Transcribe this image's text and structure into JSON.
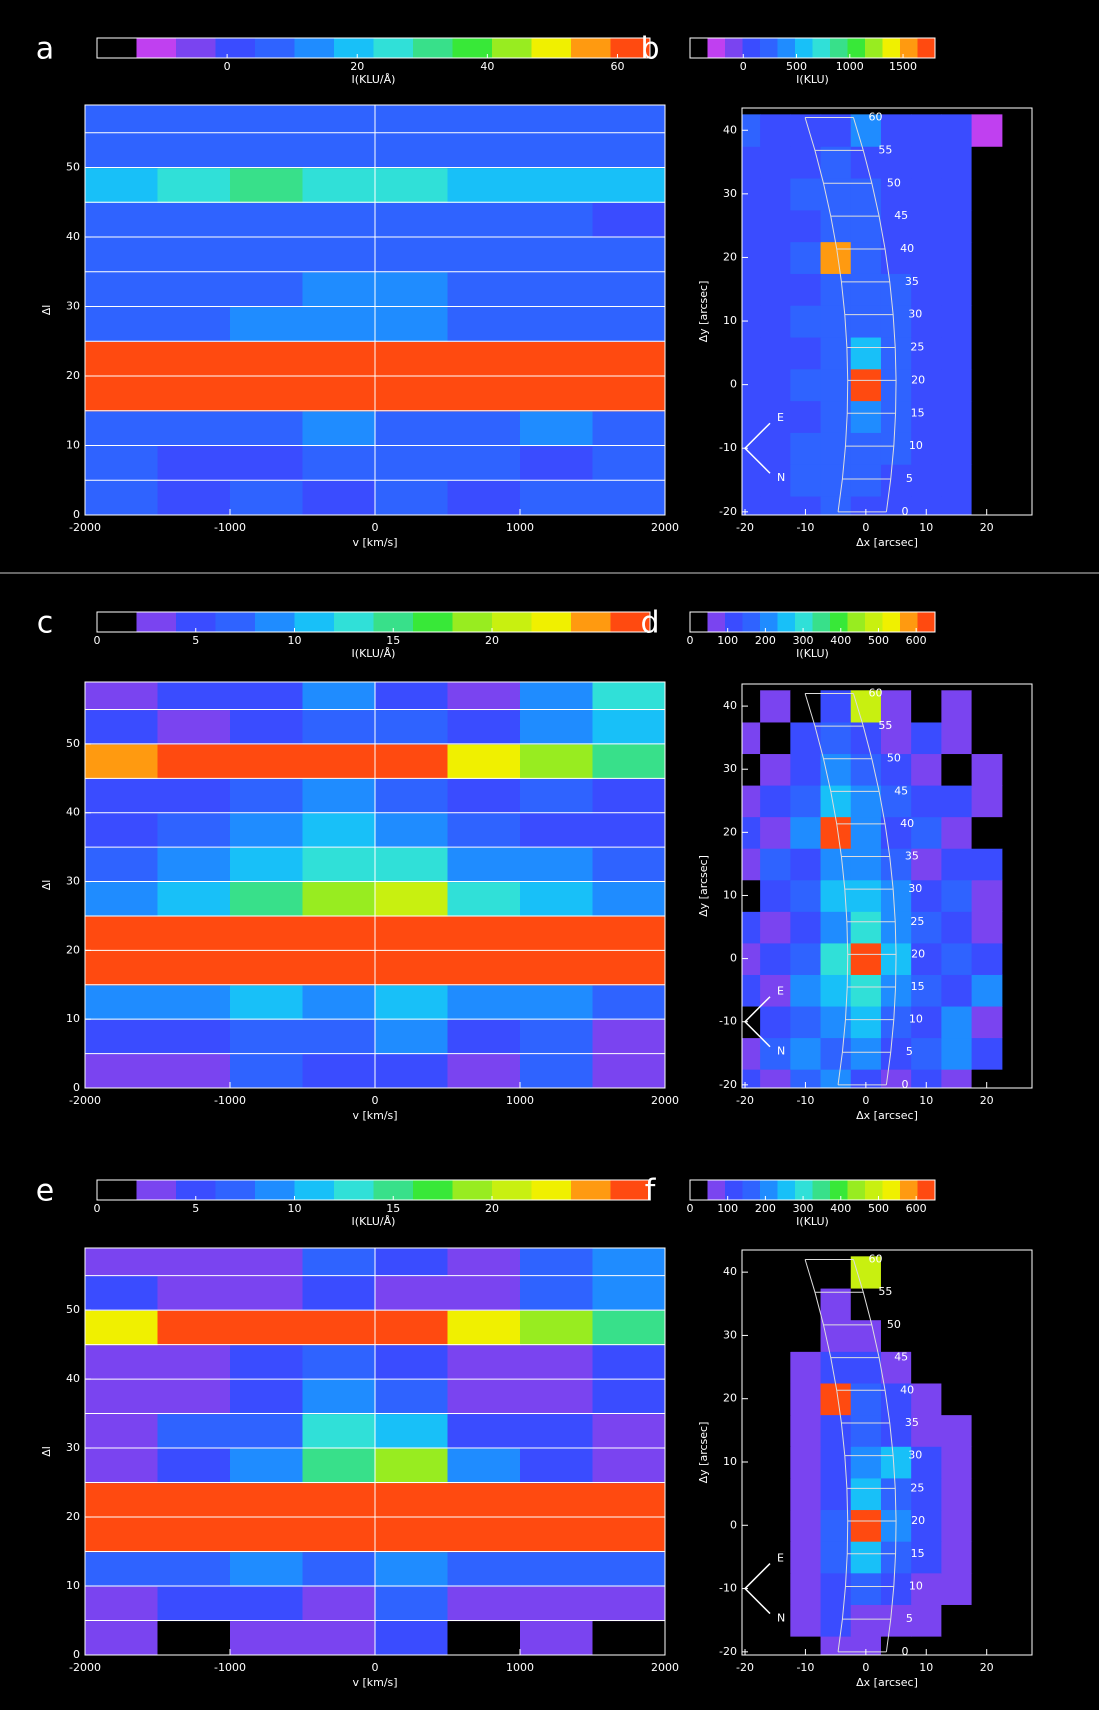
{
  "chart_data": [
    {
      "type": "heatmap",
      "label": "a",
      "colorbar_label": "I(KLU/Å)",
      "zlim": [
        -20,
        65
      ],
      "zticks": [
        0,
        20,
        40,
        60
      ],
      "colors": [
        "#000000",
        "#c040f0",
        "#7a44f0",
        "#3a4cff",
        "#2f63ff",
        "#1f8cff",
        "#18c0f8",
        "#30e0d8",
        "#38e08a",
        "#38e838",
        "#98ec20",
        "#f0f000",
        "#ff9a10",
        "#ff4a10"
      ],
      "xlabel": "v [km/s]",
      "ylabel": "Δl",
      "xlim": [
        -2000,
        2000
      ],
      "ylim": [
        0,
        59
      ],
      "xticks": [
        -2000,
        -1000,
        0,
        1000,
        2000
      ],
      "yticks": [
        0,
        10,
        20,
        30,
        40,
        50
      ],
      "hlines": [
        5,
        10,
        15,
        20,
        25,
        30,
        35,
        40,
        45,
        50,
        55
      ],
      "vlines": [
        0
      ],
      "x": [
        -1750,
        -1250,
        -750,
        -250,
        250,
        750,
        1250,
        1750
      ],
      "y": [
        2.5,
        7.5,
        12.5,
        17.5,
        22.5,
        27.5,
        32.5,
        37.5,
        42.5,
        47.5,
        52.5,
        57.5
      ],
      "z": [
        [
          5,
          2,
          8,
          3,
          6,
          4,
          7,
          5
        ],
        [
          6,
          4,
          3,
          8,
          5,
          7,
          2,
          6
        ],
        [
          10,
          8,
          9,
          12,
          10,
          9,
          11,
          8
        ],
        [
          80,
          80,
          80,
          80,
          80,
          80,
          80,
          80
        ],
        [
          70,
          75,
          78,
          80,
          80,
          76,
          74,
          72
        ],
        [
          8,
          10,
          12,
          15,
          14,
          10,
          9,
          8
        ],
        [
          6,
          8,
          10,
          12,
          11,
          9,
          7,
          6
        ],
        [
          5,
          7,
          6,
          9,
          8,
          6,
          5,
          7
        ],
        [
          6,
          5,
          7,
          6,
          8,
          5,
          6,
          4
        ],
        [
          22,
          26,
          30,
          28,
          25,
          22,
          20,
          18
        ],
        [
          8,
          6,
          9,
          7,
          10,
          8,
          6,
          9
        ],
        [
          7,
          9,
          6,
          10,
          8,
          7,
          9,
          6
        ]
      ]
    },
    {
      "type": "heatmap",
      "label": "b",
      "colorbar_label": "I(KLU)",
      "zlim": [
        -500,
        1800
      ],
      "zticks": [
        0,
        500,
        1000,
        1500
      ],
      "colors": [
        "#000000",
        "#c040f0",
        "#7a44f0",
        "#3a4cff",
        "#2f63ff",
        "#1f8cff",
        "#18c0f8",
        "#30e0d8",
        "#38e08a",
        "#38e838",
        "#98ec20",
        "#f0f000",
        "#ff9a10",
        "#ff4a10"
      ],
      "xlabel": "Δx [arcsec]",
      "ylabel": "Δy [arcsec]",
      "xlim": [
        -20.5,
        27.5
      ],
      "ylim": [
        -20.5,
        43.5
      ],
      "xticks": [
        -20,
        -10,
        0,
        10,
        20
      ],
      "yticks": [
        -20,
        -10,
        0,
        10,
        20,
        30,
        40
      ],
      "x": [
        -20,
        -15,
        -10,
        -5,
        0,
        5,
        10,
        15,
        20
      ],
      "y": [
        -20,
        -15,
        -10,
        -5,
        0,
        5,
        10,
        15,
        20,
        25,
        30,
        35,
        40
      ],
      "z": [
        [
          50,
          100,
          150,
          200,
          150,
          100,
          150,
          100,
          -400
        ],
        [
          100,
          150,
          200,
          250,
          200,
          150,
          100,
          150,
          -400
        ],
        [
          150,
          100,
          200,
          300,
          250,
          200,
          150,
          100,
          -400
        ],
        [
          100,
          150,
          150,
          250,
          400,
          250,
          150,
          100,
          -400
        ],
        [
          100,
          150,
          200,
          300,
          1800,
          300,
          150,
          150,
          -400
        ],
        [
          150,
          100,
          150,
          250,
          500,
          250,
          150,
          100,
          -400
        ],
        [
          100,
          150,
          200,
          300,
          300,
          200,
          150,
          100,
          -400
        ],
        [
          100,
          100,
          150,
          250,
          250,
          200,
          100,
          150,
          -400
        ],
        [
          150,
          100,
          200,
          1600,
          250,
          150,
          100,
          100,
          -400
        ],
        [
          100,
          150,
          150,
          300,
          200,
          150,
          150,
          100,
          -400
        ],
        [
          150,
          100,
          200,
          250,
          200,
          150,
          100,
          150,
          -400
        ],
        [
          100,
          150,
          150,
          200,
          150,
          100,
          150,
          100,
          -400
        ],
        [
          200,
          150,
          100,
          150,
          400,
          150,
          100,
          150,
          -200
        ]
      ],
      "strip_labels": [
        0,
        5,
        10,
        15,
        20,
        25,
        30,
        35,
        40,
        45,
        50,
        55,
        60
      ],
      "compass_labels": [
        "E",
        "N"
      ]
    },
    {
      "type": "heatmap",
      "label": "c",
      "colorbar_label": "I(KLU/Å)",
      "zlim": [
        0,
        28
      ],
      "zticks": [
        0,
        5,
        10,
        15,
        20
      ],
      "colors": [
        "#000000",
        "#7a44f0",
        "#3a4cff",
        "#2f63ff",
        "#1f8cff",
        "#18c0f8",
        "#30e0d8",
        "#38e08a",
        "#38e838",
        "#98ec20",
        "#c8f010",
        "#f0f000",
        "#ff9a10",
        "#ff4a10"
      ],
      "xlabel": "v [km/s]",
      "ylabel": "Δl",
      "xlim": [
        -2000,
        2000
      ],
      "ylim": [
        0,
        59
      ],
      "xticks": [
        -2000,
        -1000,
        0,
        1000,
        2000
      ],
      "yticks": [
        0,
        10,
        20,
        30,
        40,
        50
      ],
      "hlines": [
        5,
        10,
        15,
        20,
        25,
        30,
        35,
        40,
        45,
        50,
        55
      ],
      "vlines": [
        0
      ],
      "x": [
        -1750,
        -1250,
        -750,
        -250,
        250,
        750,
        1250,
        1750
      ],
      "y": [
        2.5,
        7.5,
        12.5,
        17.5,
        22.5,
        27.5,
        32.5,
        37.5,
        42.5,
        47.5,
        52.5,
        57.5
      ],
      "z": [
        [
          3,
          2,
          6,
          4,
          5,
          3,
          7,
          2
        ],
        [
          5,
          4,
          7,
          6,
          8,
          5,
          6,
          3
        ],
        [
          9,
          8,
          10,
          9,
          11,
          8,
          9,
          7
        ],
        [
          40,
          40,
          40,
          40,
          40,
          40,
          40,
          40
        ],
        [
          35,
          36,
          38,
          40,
          40,
          37,
          36,
          34
        ],
        [
          8,
          10,
          14,
          18,
          20,
          13,
          10,
          8
        ],
        [
          6,
          8,
          10,
          13,
          12,
          9,
          8,
          6
        ],
        [
          4,
          6,
          8,
          10,
          9,
          7,
          5,
          4
        ],
        [
          5,
          4,
          6,
          8,
          7,
          5,
          6,
          4
        ],
        [
          24,
          30,
          32,
          30,
          28,
          22,
          18,
          14
        ],
        [
          4,
          3,
          5,
          7,
          6,
          4,
          8,
          10
        ],
        [
          3,
          5,
          4,
          8,
          5,
          3,
          9,
          12
        ]
      ]
    },
    {
      "type": "heatmap",
      "label": "d",
      "colorbar_label": "I(KLU)",
      "zlim": [
        0,
        650
      ],
      "zticks": [
        0,
        100,
        200,
        300,
        400,
        500,
        600
      ],
      "colors": [
        "#000000",
        "#7a44f0",
        "#3a4cff",
        "#2f63ff",
        "#1f8cff",
        "#18c0f8",
        "#30e0d8",
        "#38e08a",
        "#38e838",
        "#98ec20",
        "#c8f010",
        "#f0f000",
        "#ff9a10",
        "#ff4a10"
      ],
      "xlabel": "Δx [arcsec]",
      "ylabel": "Δy [arcsec]",
      "xlim": [
        -20.5,
        27.5
      ],
      "ylim": [
        -20.5,
        43.5
      ],
      "xticks": [
        -20,
        -10,
        0,
        10,
        20
      ],
      "yticks": [
        -20,
        -10,
        0,
        10,
        20,
        30,
        40
      ],
      "x": [
        -20,
        -15,
        -10,
        -5,
        0,
        5,
        10,
        15,
        20
      ],
      "y": [
        -20,
        -15,
        -10,
        -5,
        0,
        5,
        10,
        15,
        20,
        25,
        30,
        35,
        40
      ],
      "z": [
        [
          100,
          50,
          150,
          200,
          100,
          50,
          100,
          50,
          0
        ],
        [
          50,
          150,
          200,
          150,
          200,
          100,
          150,
          200,
          100
        ],
        [
          0,
          100,
          150,
          200,
          250,
          150,
          100,
          200,
          50
        ],
        [
          100,
          50,
          200,
          250,
          300,
          200,
          150,
          100,
          200
        ],
        [
          50,
          100,
          150,
          300,
          700,
          250,
          100,
          150,
          100
        ],
        [
          100,
          50,
          100,
          200,
          300,
          200,
          150,
          100,
          50
        ],
        [
          0,
          100,
          150,
          250,
          250,
          200,
          100,
          150,
          50
        ],
        [
          50,
          150,
          100,
          200,
          200,
          150,
          50,
          100,
          100
        ],
        [
          100,
          50,
          200,
          650,
          200,
          100,
          150,
          50,
          0
        ],
        [
          50,
          100,
          150,
          250,
          200,
          150,
          100,
          100,
          50
        ],
        [
          0,
          50,
          100,
          200,
          150,
          100,
          50,
          0,
          50
        ],
        [
          50,
          0,
          100,
          150,
          100,
          50,
          100,
          50,
          0
        ],
        [
          0,
          50,
          0,
          100,
          500,
          50,
          0,
          50,
          0
        ]
      ],
      "strip_labels": [
        0,
        5,
        10,
        15,
        20,
        25,
        30,
        35,
        40,
        45,
        50,
        55,
        60
      ],
      "compass_labels": [
        "E",
        "N"
      ]
    },
    {
      "type": "heatmap",
      "label": "e",
      "colorbar_label": "I(KLU/Å)",
      "zlim": [
        0,
        28
      ],
      "zticks": [
        0,
        5,
        10,
        15,
        20
      ],
      "colors": [
        "#000000",
        "#7a44f0",
        "#3a4cff",
        "#2f63ff",
        "#1f8cff",
        "#18c0f8",
        "#30e0d8",
        "#38e08a",
        "#38e838",
        "#98ec20",
        "#c8f010",
        "#f0f000",
        "#ff9a10",
        "#ff4a10"
      ],
      "xlabel": "v [km/s]",
      "ylabel": "Δl",
      "xlim": [
        -2000,
        2000
      ],
      "ylim": [
        0,
        59
      ],
      "xticks": [
        -2000,
        -1000,
        0,
        1000,
        2000
      ],
      "yticks": [
        0,
        10,
        20,
        30,
        40,
        50
      ],
      "hlines": [
        5,
        10,
        15,
        20,
        25,
        30,
        35,
        40,
        45,
        50,
        55
      ],
      "vlines": [
        0
      ],
      "x": [
        -1750,
        -1250,
        -750,
        -250,
        250,
        750,
        1250,
        1750
      ],
      "y": [
        2.5,
        7.5,
        12.5,
        17.5,
        22.5,
        27.5,
        32.5,
        37.5,
        42.5,
        47.5,
        52.5,
        57.5
      ],
      "z": [
        [
          2,
          1,
          3,
          2,
          4,
          1,
          3,
          1
        ],
        [
          3,
          4,
          5,
          3,
          6,
          2,
          3,
          2
        ],
        [
          6,
          7,
          8,
          7,
          9,
          6,
          7,
          6
        ],
        [
          40,
          40,
          40,
          40,
          40,
          40,
          40,
          40
        ],
        [
          36,
          37,
          38,
          40,
          40,
          38,
          37,
          36
        ],
        [
          3,
          5,
          8,
          14,
          18,
          8,
          4,
          3
        ],
        [
          3,
          6,
          7,
          12,
          10,
          5,
          4,
          3
        ],
        [
          2,
          3,
          5,
          8,
          6,
          3,
          3,
          4
        ],
        [
          3,
          2,
          4,
          6,
          4,
          2,
          3,
          4
        ],
        [
          22,
          28,
          32,
          30,
          27,
          22,
          18,
          15
        ],
        [
          4,
          2,
          3,
          5,
          3,
          2,
          6,
          9
        ],
        [
          2,
          3,
          2,
          6,
          4,
          2,
          7,
          8
        ]
      ]
    },
    {
      "type": "heatmap",
      "label": "f",
      "colorbar_label": "I(KLU)",
      "zlim": [
        0,
        650
      ],
      "zticks": [
        0,
        100,
        200,
        300,
        400,
        500,
        600
      ],
      "colors": [
        "#000000",
        "#7a44f0",
        "#3a4cff",
        "#2f63ff",
        "#1f8cff",
        "#18c0f8",
        "#30e0d8",
        "#38e08a",
        "#38e838",
        "#98ec20",
        "#c8f010",
        "#f0f000",
        "#ff9a10",
        "#ff4a10"
      ],
      "xlabel": "Δx [arcsec]",
      "ylabel": "Δy [arcsec]",
      "xlim": [
        -20.5,
        27.5
      ],
      "ylim": [
        -20.5,
        43.5
      ],
      "xticks": [
        -20,
        -10,
        0,
        10,
        20
      ],
      "yticks": [
        -20,
        -10,
        0,
        10,
        20,
        30,
        40
      ],
      "x": [
        -20,
        -15,
        -10,
        -5,
        0,
        5,
        10,
        15,
        20
      ],
      "y": [
        -20,
        -15,
        -10,
        -5,
        0,
        5,
        10,
        15,
        20,
        25,
        30,
        35,
        40
      ],
      "z": [
        [
          0,
          0,
          0,
          50,
          80,
          0,
          0,
          0,
          0
        ],
        [
          0,
          0,
          50,
          100,
          80,
          50,
          80,
          0,
          0
        ],
        [
          0,
          0,
          50,
          100,
          150,
          100,
          50,
          80,
          0
        ],
        [
          0,
          0,
          80,
          150,
          250,
          150,
          100,
          50,
          0
        ],
        [
          0,
          0,
          80,
          150,
          700,
          200,
          100,
          50,
          0
        ],
        [
          0,
          0,
          50,
          100,
          250,
          150,
          100,
          50,
          0
        ],
        [
          0,
          0,
          50,
          100,
          200,
          250,
          100,
          50,
          0
        ],
        [
          0,
          0,
          50,
          100,
          150,
          100,
          80,
          50,
          0
        ],
        [
          0,
          0,
          80,
          650,
          150,
          100,
          50,
          0,
          0
        ],
        [
          0,
          0,
          50,
          100,
          100,
          50,
          0,
          0,
          0
        ],
        [
          0,
          0,
          0,
          80,
          50,
          0,
          0,
          0,
          0
        ],
        [
          0,
          0,
          0,
          50,
          0,
          0,
          0,
          0,
          0
        ],
        [
          0,
          0,
          0,
          0,
          500,
          0,
          0,
          0,
          0
        ]
      ],
      "strip_labels": [
        0,
        5,
        10,
        15,
        20,
        25,
        30,
        35,
        40,
        45,
        50,
        55,
        60
      ],
      "compass_labels": [
        "E",
        "N"
      ]
    }
  ]
}
